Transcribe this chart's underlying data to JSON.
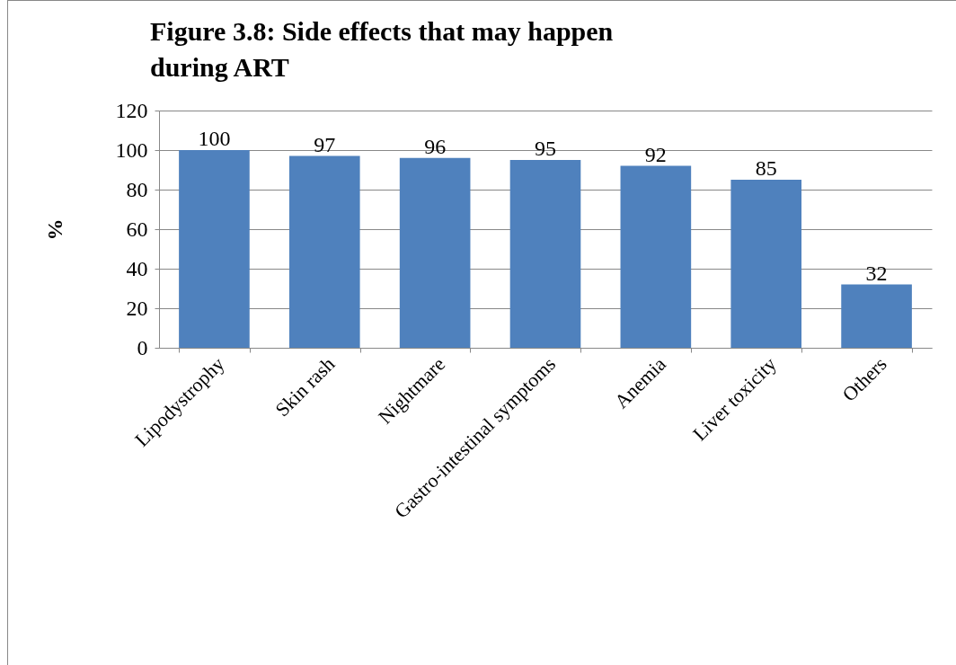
{
  "chart_data": {
    "type": "bar",
    "title": "Figure 3.8: Side effects that may happen during ART",
    "ylabel": "%",
    "categories": [
      "Lipodystrophy",
      "Skin rash",
      "Nightmare",
      "Gastro-intestinal symptoms",
      "Anemia",
      "Liver toxicity",
      "Others"
    ],
    "values": [
      100,
      97,
      96,
      95,
      92,
      85,
      32
    ],
    "color": "#4f81bd",
    "ylim": [
      0,
      120
    ],
    "yticks": [
      0,
      20,
      40,
      60,
      80,
      100,
      120
    ],
    "grid": "y",
    "data_labels": true
  }
}
